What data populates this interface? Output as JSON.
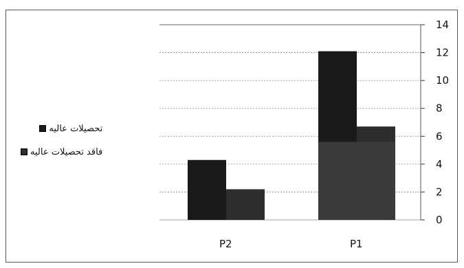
{
  "chart_data": {
    "type": "bar",
    "categories": [
      "P2",
      "P1"
    ],
    "series": [
      {
        "name": "تحصیلات عالیه",
        "values": [
          4.3,
          12.1
        ]
      },
      {
        "name": "فاقد تحصیلات عالیه",
        "values": [
          2.2,
          6.7
        ]
      }
    ],
    "overlay_values": [
      null,
      5.6
    ],
    "ylim": [
      0,
      14
    ],
    "yticks": [
      "0",
      "2",
      "4",
      "6",
      "8",
      "10",
      "12",
      "14"
    ],
    "grid": true,
    "legend_position": "left",
    "colors": {
      "series1": "#1a1a1a",
      "series2": "#2e2e2e",
      "overlay": "#3a3a3a",
      "grid": "#888888"
    }
  }
}
